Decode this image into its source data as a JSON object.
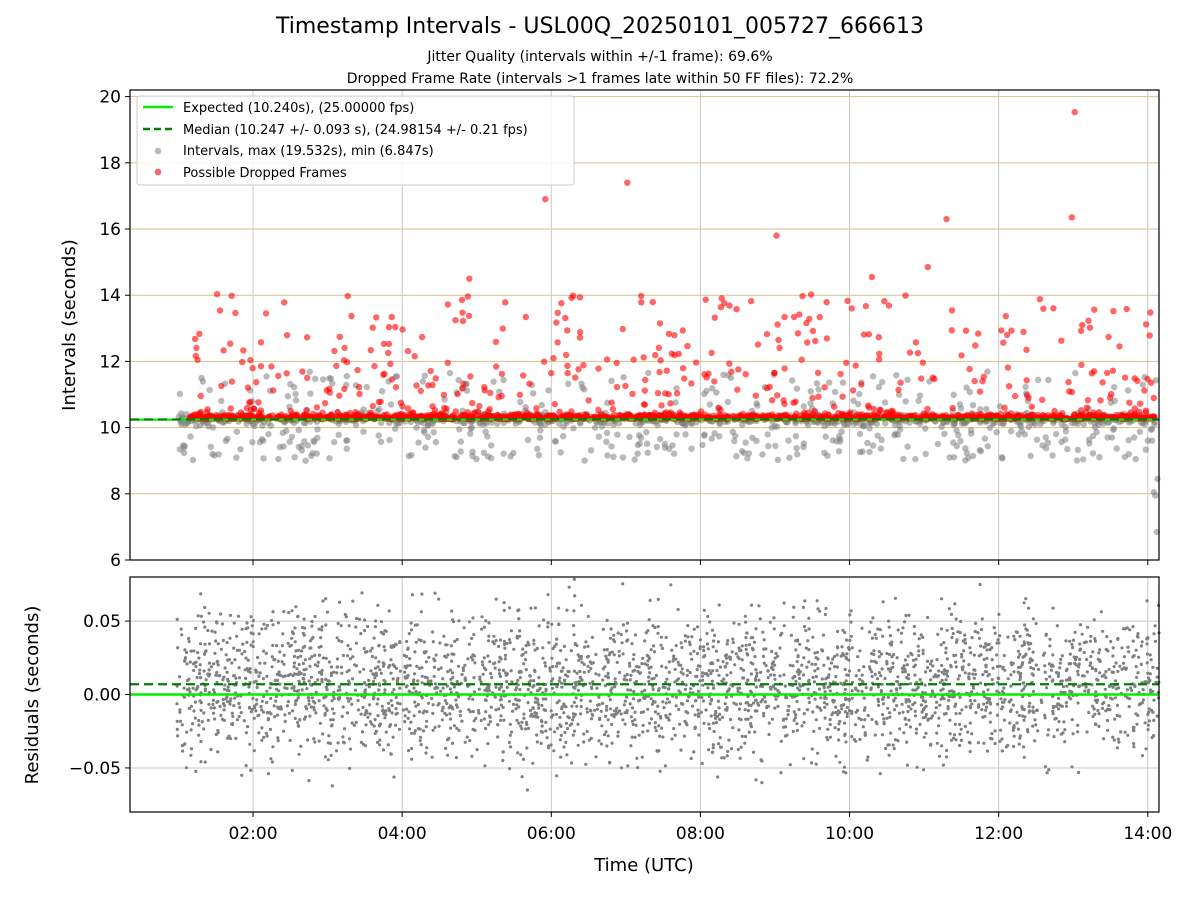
{
  "figure": {
    "title": "Timestamp Intervals - USL00Q_20250101_005727_666613",
    "subtitle_1": "Jitter Quality (intervals within +/-1 frame): 69.6%",
    "subtitle_2": "Dropped Frame Rate (intervals >1 frames late within 50 FF files): 72.2%"
  },
  "colors": {
    "expected": "#00ee00",
    "median": "#007f00",
    "intervals": "#808080",
    "dropped": "#ff0000",
    "hgrid_top": "#d4c28a",
    "grid": "#c8c8c8"
  },
  "chart_data": [
    {
      "type": "scatter",
      "ylabel": "Intervals (seconds)",
      "ylim": [
        6,
        20.2
      ],
      "xlim_hours": [
        0.35,
        14.15
      ],
      "yticks": [
        "6",
        "8",
        "10",
        "12",
        "14",
        "16",
        "18",
        "20"
      ],
      "grid": true,
      "legend_position": "upper-left",
      "legend": [
        "Expected (10.240s), (25.00000 fps)",
        "Median (10.247 +/- 0.093 s), (24.98154 +/- 0.21 fps)",
        "Intervals, max (19.532s), min (6.847s)",
        "Possible Dropped Frames"
      ],
      "expected_value": 10.24,
      "median_value": 10.247,
      "series": [
        {
          "name": "Intervals, max (19.532s), min (6.847s)",
          "x_start_hours": 0.98,
          "x_end_hours": 14.15,
          "typical": 10.24,
          "max": 19.532,
          "min": 6.847
        },
        {
          "name": "Possible Dropped Frames",
          "notable_points": [
            {
              "x": 5.92,
              "y": 16.9
            },
            {
              "x": 7.02,
              "y": 17.4
            },
            {
              "x": 9.02,
              "y": 15.8
            },
            {
              "x": 11.3,
              "y": 16.3
            },
            {
              "x": 12.98,
              "y": 16.35
            },
            {
              "x": 13.02,
              "y": 19.532
            },
            {
              "x": 4.9,
              "y": 14.5
            },
            {
              "x": 10.3,
              "y": 14.55
            },
            {
              "x": 11.05,
              "y": 14.85
            }
          ]
        }
      ]
    },
    {
      "type": "scatter",
      "ylabel": "Residuals (seconds)",
      "xlabel": "Time (UTC)",
      "ylim": [
        -0.08,
        0.08
      ],
      "yticks": [
        "−0.05",
        "0.00",
        "0.05"
      ],
      "xticks": [
        "02:00",
        "04:00",
        "06:00",
        "08:00",
        "10:00",
        "12:00",
        "14:00"
      ],
      "grid": true,
      "expected_value": 0.0,
      "median_value": 0.007,
      "residual_spread": 0.025
    }
  ]
}
